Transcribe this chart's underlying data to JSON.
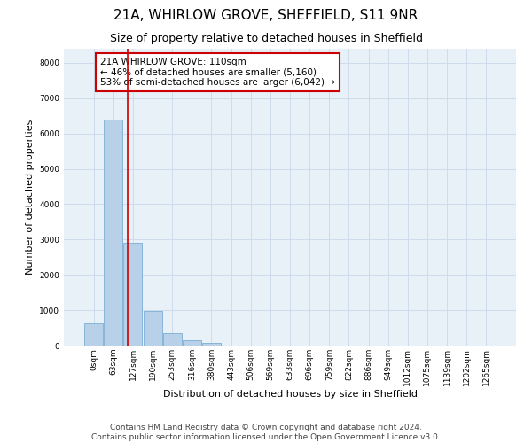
{
  "title1": "21A, WHIRLOW GROVE, SHEFFIELD, S11 9NR",
  "title2": "Size of property relative to detached houses in Sheffield",
  "xlabel": "Distribution of detached houses by size in Sheffield",
  "ylabel": "Number of detached properties",
  "bar_labels": [
    "0sqm",
    "63sqm",
    "127sqm",
    "190sqm",
    "253sqm",
    "316sqm",
    "380sqm",
    "443sqm",
    "506sqm",
    "569sqm",
    "633sqm",
    "696sqm",
    "759sqm",
    "822sqm",
    "886sqm",
    "949sqm",
    "1012sqm",
    "1075sqm",
    "1139sqm",
    "1202sqm",
    "1265sqm"
  ],
  "bar_values": [
    620,
    6400,
    2920,
    970,
    360,
    150,
    80,
    0,
    0,
    0,
    0,
    0,
    0,
    0,
    0,
    0,
    0,
    0,
    0,
    0,
    0
  ],
  "bar_color": "#b8d0e8",
  "bar_edge_color": "#7aafd4",
  "vline_color": "#cc0000",
  "annotation_text": "21A WHIRLOW GROVE: 110sqm\n← 46% of detached houses are smaller (5,160)\n53% of semi-detached houses are larger (6,042) →",
  "annotation_box_color": "white",
  "annotation_box_edge": "#cc0000",
  "ylim": [
    0,
    8400
  ],
  "yticks": [
    0,
    1000,
    2000,
    3000,
    4000,
    5000,
    6000,
    7000,
    8000
  ],
  "grid_color": "#c8d8e8",
  "background_color": "#e8f0f8",
  "footer_text": "Contains HM Land Registry data © Crown copyright and database right 2024.\nContains public sector information licensed under the Open Government Licence v3.0.",
  "title1_fontsize": 11,
  "title2_fontsize": 9,
  "annotation_fontsize": 7.5,
  "ylabel_fontsize": 8,
  "xlabel_fontsize": 8,
  "footer_fontsize": 6.5,
  "tick_fontsize": 6.5
}
